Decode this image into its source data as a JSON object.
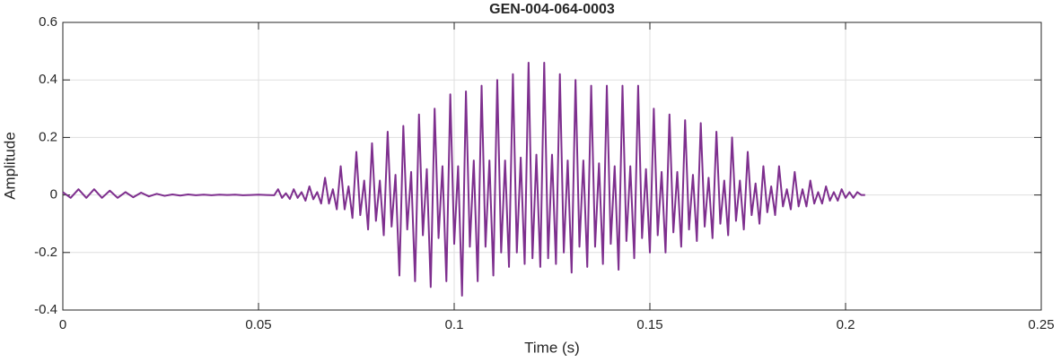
{
  "chart_data": {
    "type": "line",
    "title": "GEN-004-064-0003",
    "xlabel": "Time (s)",
    "ylabel": "Amplitude",
    "xlim": [
      0,
      0.25
    ],
    "ylim": [
      -0.4,
      0.6
    ],
    "xticks": [
      0,
      0.05,
      0.1,
      0.15,
      0.2,
      0.25
    ],
    "yticks": [
      -0.4,
      -0.2,
      0,
      0.2,
      0.4,
      0.6
    ],
    "grid": true,
    "x": [
      0,
      0.002,
      0.004,
      0.006,
      0.008,
      0.01,
      0.012,
      0.014,
      0.016,
      0.018,
      0.02,
      0.022,
      0.024,
      0.026,
      0.028,
      0.03,
      0.032,
      0.034,
      0.036,
      0.038,
      0.04,
      0.042,
      0.044,
      0.046,
      0.048,
      0.05,
      0.052,
      0.054,
      0.055,
      0.056,
      0.057,
      0.058,
      0.059,
      0.06,
      0.061,
      0.062,
      0.063,
      0.064,
      0.065,
      0.066,
      0.067,
      0.068,
      0.069,
      0.07,
      0.071,
      0.072,
      0.073,
      0.074,
      0.075,
      0.076,
      0.077,
      0.078,
      0.079,
      0.08,
      0.081,
      0.082,
      0.083,
      0.084,
      0.085,
      0.086,
      0.087,
      0.088,
      0.089,
      0.09,
      0.091,
      0.092,
      0.093,
      0.094,
      0.095,
      0.096,
      0.097,
      0.098,
      0.099,
      0.1,
      0.101,
      0.102,
      0.103,
      0.104,
      0.105,
      0.106,
      0.107,
      0.108,
      0.109,
      0.11,
      0.111,
      0.112,
      0.113,
      0.114,
      0.115,
      0.116,
      0.117,
      0.118,
      0.119,
      0.12,
      0.121,
      0.122,
      0.123,
      0.124,
      0.125,
      0.126,
      0.127,
      0.128,
      0.129,
      0.13,
      0.131,
      0.132,
      0.133,
      0.134,
      0.135,
      0.136,
      0.137,
      0.138,
      0.139,
      0.14,
      0.141,
      0.142,
      0.143,
      0.144,
      0.145,
      0.146,
      0.147,
      0.148,
      0.149,
      0.15,
      0.151,
      0.152,
      0.153,
      0.154,
      0.155,
      0.156,
      0.157,
      0.158,
      0.159,
      0.16,
      0.161,
      0.162,
      0.163,
      0.164,
      0.165,
      0.166,
      0.167,
      0.168,
      0.169,
      0.17,
      0.171,
      0.172,
      0.173,
      0.174,
      0.175,
      0.176,
      0.177,
      0.178,
      0.179,
      0.18,
      0.181,
      0.182,
      0.183,
      0.184,
      0.185,
      0.186,
      0.187,
      0.188,
      0.189,
      0.19,
      0.191,
      0.192,
      0.193,
      0.194,
      0.195,
      0.196,
      0.197,
      0.198,
      0.199,
      0.2,
      0.201,
      0.202,
      0.203,
      0.204,
      0.205
    ],
    "series": [
      {
        "color": "#7e2f8e",
        "values": [
          0.01,
          -0.01,
          0.02,
          -0.01,
          0.02,
          -0.01,
          0.015,
          -0.01,
          0.01,
          -0.008,
          0.008,
          -0.005,
          0.004,
          -0.003,
          0.002,
          -0.002,
          0.002,
          -0.001,
          0.001,
          -0.001,
          0.001,
          0,
          0.001,
          -0.001,
          0,
          0.001,
          0,
          -0.001,
          0.02,
          -0.01,
          0.006,
          -0.014,
          0.02,
          -0.01,
          0.01,
          -0.02,
          0.03,
          -0.015,
          0.01,
          -0.03,
          0.06,
          -0.03,
          0.02,
          -0.05,
          0.1,
          -0.05,
          0.03,
          -0.08,
          0.15,
          -0.07,
          0.05,
          -0.12,
          0.18,
          -0.09,
          0.05,
          -0.14,
          0.22,
          -0.11,
          0.07,
          -0.28,
          0.24,
          -0.12,
          0.08,
          -0.3,
          0.28,
          -0.14,
          0.09,
          -0.32,
          0.3,
          -0.15,
          0.1,
          -0.3,
          0.35,
          -0.17,
          0.1,
          -0.35,
          0.36,
          -0.18,
          0.12,
          -0.3,
          0.38,
          -0.18,
          0.12,
          -0.28,
          0.4,
          -0.2,
          0.12,
          -0.25,
          0.42,
          -0.2,
          0.13,
          -0.24,
          0.46,
          -0.22,
          0.14,
          -0.25,
          0.46,
          -0.22,
          0.14,
          -0.24,
          0.42,
          -0.2,
          0.12,
          -0.27,
          0.4,
          -0.18,
          0.12,
          -0.25,
          0.38,
          -0.18,
          0.11,
          -0.24,
          0.38,
          -0.17,
          0.1,
          -0.26,
          0.38,
          -0.16,
          0.1,
          -0.22,
          0.38,
          -0.15,
          0.09,
          -0.2,
          0.3,
          -0.14,
          0.08,
          -0.2,
          0.28,
          -0.13,
          0.08,
          -0.18,
          0.26,
          -0.12,
          0.07,
          -0.16,
          0.25,
          -0.11,
          0.06,
          -0.15,
          0.22,
          -0.1,
          0.05,
          -0.14,
          0.2,
          -0.09,
          0.05,
          -0.12,
          0.15,
          -0.07,
          0.04,
          -0.1,
          0.1,
          -0.06,
          0.03,
          -0.07,
          0.1,
          -0.04,
          0.02,
          -0.05,
          0.08,
          -0.04,
          0.02,
          -0.04,
          0.05,
          -0.03,
          0.01,
          -0.03,
          0.03,
          -0.02,
          0.01,
          -0.02,
          0.02,
          -0.01,
          0.01,
          -0.01,
          0.01,
          0,
          0
        ]
      }
    ]
  }
}
